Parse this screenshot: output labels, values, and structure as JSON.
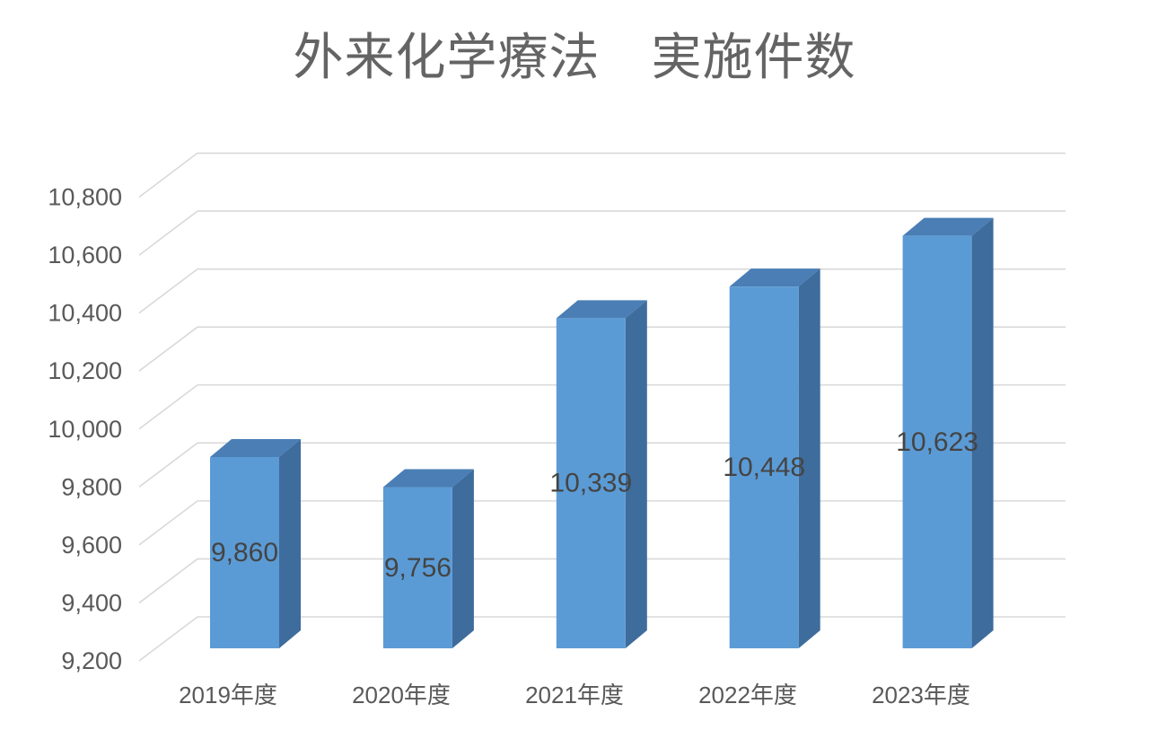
{
  "chart_data": {
    "type": "bar",
    "style": "3d-column",
    "title": "外来化学療法　実施件数",
    "categories": [
      "2019年度",
      "2020年度",
      "2021年度",
      "2022年度",
      "2023年度"
    ],
    "values": [
      9860,
      9756,
      10339,
      10448,
      10623
    ],
    "value_labels": [
      "9,860",
      "9,756",
      "10,339",
      "10,448",
      "10,623"
    ],
    "xlabel": "",
    "ylabel": "",
    "y_axis": {
      "min": 9200,
      "max": 10800,
      "step": 200,
      "tick_labels": [
        "9,200",
        "9,400",
        "9,600",
        "9,800",
        "10,000",
        "10,200",
        "10,400",
        "10,600",
        "10,800"
      ]
    },
    "grid": true,
    "legend": false,
    "colors": {
      "bar_front": "#5B9BD5",
      "bar_top": "#4A7EB5",
      "bar_side": "#3E6C9C",
      "gridline": "#D9D9D9",
      "axis_text": "#595959",
      "data_label_text": "#444444",
      "title_text": "#646464",
      "background": "#FFFFFF"
    }
  }
}
